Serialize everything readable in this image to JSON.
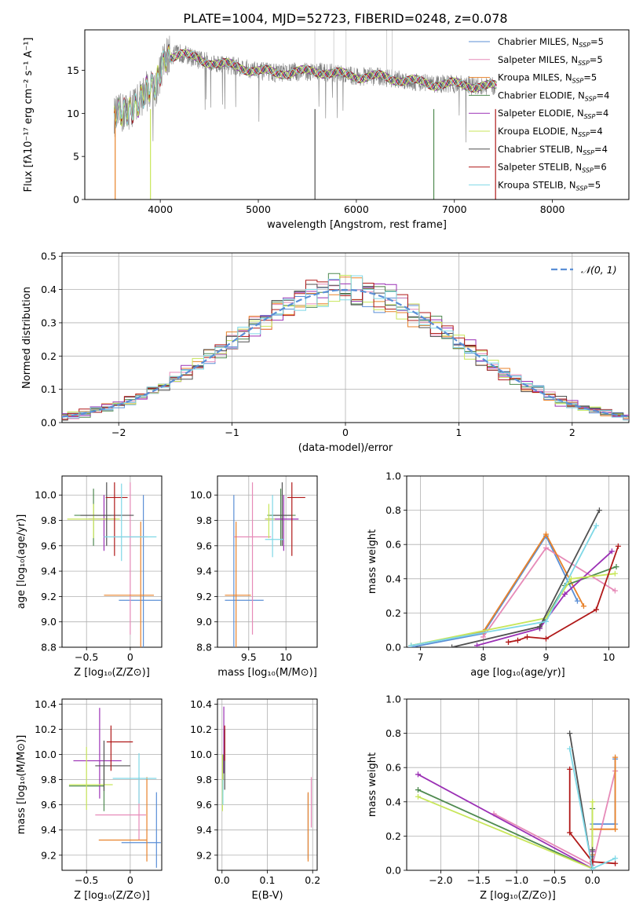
{
  "figure": {
    "title": "PLATE=1004, MJD=52723, FIBERID=0248, z=0.078"
  },
  "series": [
    {
      "name": "Chabrier MILES, N",
      "sub": "SSP",
      "suffix": "=5",
      "color": "#5b8fd6"
    },
    {
      "name": "Salpeter MILES, N",
      "sub": "SSP",
      "suffix": "=5",
      "color": "#e68ab8"
    },
    {
      "name": "Kroupa MILES, N",
      "sub": "SSP",
      "suffix": "=5",
      "color": "#e8822a"
    },
    {
      "name": "Chabrier ELODIE, N",
      "sub": "SSP",
      "suffix": "=4",
      "color": "#4f8a50"
    },
    {
      "name": "Salpeter ELODIE, N",
      "sub": "SSP",
      "suffix": "=4",
      "color": "#9b30b5"
    },
    {
      "name": "Kroupa ELODIE, N",
      "sub": "SSP",
      "suffix": "=4",
      "color": "#c8e65a"
    },
    {
      "name": "Chabrier STELIB, N",
      "sub": "SSP",
      "suffix": "=4",
      "color": "#505050"
    },
    {
      "name": "Salpeter STELIB, N",
      "sub": "SSP",
      "suffix": "=6",
      "color": "#b01818"
    },
    {
      "name": "Kroupa STELIB, N",
      "sub": "SSP",
      "suffix": "=5",
      "color": "#7fd8e6"
    }
  ],
  "chart_data": [
    {
      "id": "spectrum",
      "type": "line",
      "xlabel": "wavelength [Angstrom, rest frame]",
      "ylabel": "Flux [fλ10⁻¹⁷ erg cm⁻² s⁻¹ A⁻¹]",
      "xlim": [
        3230,
        8780
      ],
      "ylim": [
        0,
        19.7
      ],
      "xticks": [
        4000,
        5000,
        6000,
        7000,
        8000
      ],
      "yticks": [
        0,
        5,
        10,
        15
      ],
      "grid": false,
      "legend": "right",
      "data_color": "#808080",
      "spectrum_continuum": [
        [
          3530,
          9.6
        ],
        [
          3650,
          10.2
        ],
        [
          3750,
          11.0
        ],
        [
          3850,
          12.6
        ],
        [
          3950,
          12.9
        ],
        [
          4050,
          16.5
        ],
        [
          4200,
          17.0
        ],
        [
          4400,
          16.2
        ],
        [
          4600,
          15.8
        ],
        [
          4800,
          15.4
        ],
        [
          5000,
          14.9
        ],
        [
          5200,
          14.7
        ],
        [
          5400,
          14.8
        ],
        [
          5600,
          14.9
        ],
        [
          5800,
          14.6
        ],
        [
          6000,
          14.3
        ],
        [
          6200,
          14.3
        ],
        [
          6400,
          14.0
        ],
        [
          6600,
          13.7
        ],
        [
          6800,
          13.4
        ],
        [
          7000,
          13.4
        ],
        [
          7200,
          13.2
        ],
        [
          7400,
          13.1
        ],
        [
          7600,
          13.0
        ],
        [
          7800,
          12.7
        ],
        [
          8000,
          12.6
        ],
        [
          8200,
          12.6
        ],
        [
          8400,
          12.5
        ],
        [
          8600,
          12.3
        ],
        [
          8700,
          12.2
        ]
      ]
    },
    {
      "id": "residuals",
      "type": "histogram",
      "xlabel": "(data-model)/error",
      "ylabel": "Normed distribution",
      "xlim": [
        -2.5,
        2.5
      ],
      "ylim": [
        0,
        0.51
      ],
      "xticks": [
        -2,
        -1,
        0,
        1,
        2
      ],
      "yticks": [
        0.0,
        0.1,
        0.2,
        0.3,
        0.4,
        0.5
      ],
      "grid": true,
      "legend": "top-right",
      "legend_label": "𝒩(0, 1)",
      "normal_color": "#5b8fd6",
      "bin_width": 0.1
    },
    {
      "id": "age-vs-z",
      "type": "errorbar",
      "xlabel": "Z [log₁₀(Z/Z⊙)]",
      "ylabel": "age  [log₁₀(age/yr)]",
      "xlim": [
        -0.78,
        0.36
      ],
      "ylim": [
        8.8,
        10.15
      ],
      "xticks": [
        -0.5,
        0.0
      ],
      "ytick_labels": [
        "8.8",
        "9.0",
        "9.2",
        "9.4",
        "9.6",
        "9.8",
        "10.0"
      ],
      "grid": true,
      "points": [
        [
          0.15,
          9.17,
          0.28,
          0.3,
          0.75,
          0.83
        ],
        [
          0.0,
          9.67,
          0.2,
          0.2,
          0.77,
          0.43
        ],
        [
          0.12,
          9.21,
          0.42,
          0.15,
          0.71,
          0.58
        ],
        [
          -0.42,
          9.84,
          0.22,
          0.2,
          0.24,
          0.21
        ],
        [
          -0.3,
          9.81,
          0.18,
          0.14,
          0.25,
          0.19
        ],
        [
          -0.42,
          9.81,
          0.3,
          0.3,
          0.15,
          0.12
        ],
        [
          -0.27,
          9.84,
          0.3,
          0.31,
          0.24,
          0.26
        ],
        [
          -0.18,
          9.98,
          0.1,
          0.15,
          0.46,
          0.12
        ],
        [
          -0.1,
          9.67,
          0.2,
          0.4,
          0.19,
          0.42
        ]
      ]
    },
    {
      "id": "age-vs-mass",
      "type": "errorbar",
      "xlabel": "mass [log₁₀(M/M⊙)]",
      "ylabel": "",
      "xlim": [
        9.08,
        10.42
      ],
      "ylim": [
        8.8,
        10.15
      ],
      "xticks": [
        9.5,
        10.0
      ],
      "ytick_labels": [
        "8.8",
        "9.0",
        "9.2",
        "9.4",
        "9.6",
        "9.8",
        "10.0"
      ],
      "grid": true,
      "points": [
        [
          9.3,
          9.17,
          0.12,
          0.4,
          0.75,
          0.83
        ],
        [
          9.55,
          9.67,
          0.25,
          0.25,
          0.77,
          0.43
        ],
        [
          9.33,
          9.21,
          0.15,
          0.2,
          0.71,
          0.58
        ],
        [
          9.93,
          9.84,
          0.18,
          0.2,
          0.24,
          0.21
        ],
        [
          9.97,
          9.81,
          0.25,
          0.2,
          0.25,
          0.19
        ],
        [
          9.77,
          9.81,
          0.05,
          0.08,
          0.15,
          0.12
        ],
        [
          9.95,
          9.84,
          0.12,
          0.12,
          0.24,
          0.26
        ],
        [
          10.08,
          9.98,
          0.06,
          0.18,
          0.46,
          0.12
        ],
        [
          9.82,
          9.65,
          0.1,
          0.15,
          0.14,
          0.35
        ]
      ]
    },
    {
      "id": "weight-vs-age",
      "type": "line",
      "xlabel": "age  [log₁₀(age/yr)]",
      "ylabel": "mass weight",
      "xlim": [
        6.78,
        10.32
      ],
      "ylim": [
        0,
        1.0
      ],
      "xticks": [
        7,
        8,
        9,
        10
      ],
      "yticks": [
        0.0,
        0.2,
        0.4,
        0.6,
        0.8,
        1.0
      ],
      "grid": true,
      "lines": [
        [
          [
            6.85,
            0.0
          ],
          [
            8.0,
            0.08
          ],
          [
            9.0,
            0.65
          ],
          [
            9.5,
            0.27
          ]
        ],
        [
          [
            8.0,
            0.06
          ],
          [
            9.0,
            0.58
          ],
          [
            10.1,
            0.33
          ]
        ],
        [
          [
            6.85,
            0.01
          ],
          [
            8.0,
            0.09
          ],
          [
            9.0,
            0.66
          ],
          [
            9.6,
            0.24
          ]
        ],
        [
          [
            8.9,
            0.11
          ],
          [
            9.3,
            0.36
          ],
          [
            10.12,
            0.47
          ]
        ],
        [
          [
            7.9,
            0.01
          ],
          [
            8.9,
            0.11
          ],
          [
            9.3,
            0.31
          ],
          [
            10.05,
            0.56
          ]
        ],
        [
          [
            6.85,
            0.01
          ],
          [
            9.0,
            0.17
          ],
          [
            9.4,
            0.4
          ],
          [
            10.1,
            0.43
          ]
        ],
        [
          [
            7.5,
            0.0
          ],
          [
            8.9,
            0.12
          ],
          [
            9.85,
            0.8
          ]
        ],
        [
          [
            8.4,
            0.03
          ],
          [
            8.55,
            0.04
          ],
          [
            8.7,
            0.06
          ],
          [
            9.0,
            0.05
          ],
          [
            9.8,
            0.22
          ],
          [
            10.15,
            0.59
          ]
        ],
        [
          [
            6.85,
            0.01
          ],
          [
            9.0,
            0.15
          ],
          [
            9.8,
            0.71
          ]
        ]
      ]
    },
    {
      "id": "mass-vs-z",
      "type": "errorbar",
      "xlabel": "Z [log₁₀(Z/Z⊙)]",
      "ylabel": "mass [log₁₀(M/M⊙)]",
      "xlim": [
        -0.78,
        0.36
      ],
      "ylim": [
        9.08,
        10.44
      ],
      "xticks": [
        -0.5,
        0.0
      ],
      "ytick_labels": [
        "9.2",
        "9.4",
        "9.6",
        "9.8",
        "10.0",
        "10.2",
        "10.4"
      ],
      "grid": true,
      "points": [
        [
          0.3,
          9.3,
          0.4,
          0.05,
          0.2,
          0.4
        ],
        [
          0.1,
          9.52,
          0.5,
          0.08,
          0.2,
          0.3
        ],
        [
          0.19,
          9.32,
          0.55,
          0.0,
          0.17,
          0.5
        ],
        [
          -0.3,
          9.75,
          0.4,
          0.0,
          0.2,
          0.15
        ],
        [
          -0.35,
          9.95,
          0.3,
          0.25,
          0.3,
          0.42
        ],
        [
          -0.5,
          9.76,
          0.2,
          0.3,
          0.2,
          0.3
        ],
        [
          -0.3,
          9.91,
          0.1,
          0.3,
          0.2,
          0.2
        ],
        [
          -0.22,
          10.1,
          0.05,
          0.25,
          0.23,
          0.13
        ],
        [
          0.1,
          9.81,
          0.3,
          0.2,
          0.2,
          0.2
        ]
      ]
    },
    {
      "id": "mass-vs-ebv",
      "type": "errorbar",
      "xlabel": "E(B-V)",
      "ylabel": "",
      "xlim": [
        -0.01,
        0.21
      ],
      "ylim": [
        9.08,
        10.44
      ],
      "xticks": [
        0.0,
        0.1,
        0.2
      ],
      "ytick_labels": [
        "9.2",
        "9.4",
        "9.6",
        "9.8",
        "10.0",
        "10.2",
        "10.4"
      ],
      "grid": true,
      "points": [
        [
          0.19,
          9.5,
          0.0,
          0.0,
          0.33,
          0.19
        ],
        [
          0.197,
          9.52,
          0.0,
          0.0,
          0.1,
          0.3
        ],
        [
          0.19,
          9.32,
          0.0,
          0.0,
          0.17,
          0.38
        ],
        [
          0.002,
          9.8,
          0.0,
          0.0,
          0.1,
          0.2
        ],
        [
          0.004,
          10.05,
          0.0,
          0.0,
          0.2,
          0.33
        ],
        [
          0.001,
          9.8,
          0.0,
          0.0,
          0.25,
          0.2
        ],
        [
          0.006,
          10.0,
          0.0,
          0.0,
          0.28,
          0.2
        ],
        [
          0.006,
          10.1,
          0.0,
          0.0,
          0.15,
          0.13
        ],
        [
          0.002,
          9.7,
          0.0,
          0.0,
          0.1,
          0.1
        ]
      ]
    },
    {
      "id": "weight-vs-z",
      "type": "line",
      "xlabel": "Z [log₁₀(Z/Z⊙)]",
      "ylabel": "mass weight",
      "xlim": [
        -2.45,
        0.48
      ],
      "ylim": [
        0,
        1.0
      ],
      "xticks": [
        -2.0,
        -1.5,
        -1.0,
        -0.5,
        0.0
      ],
      "yticks": [
        0.0,
        0.2,
        0.4,
        0.6,
        0.8,
        1.0
      ],
      "grid": true,
      "lines": [
        [
          [
            0.0,
            0.08
          ],
          [
            0.0,
            0.27
          ],
          [
            0.3,
            0.27
          ],
          [
            0.3,
            0.65
          ]
        ],
        [
          [
            -1.3,
            0.33
          ],
          [
            0.0,
            0.03
          ],
          [
            0.3,
            0.58
          ]
        ],
        [
          [
            0.0,
            0.09
          ],
          [
            0.0,
            0.24
          ],
          [
            0.3,
            0.24
          ],
          [
            0.3,
            0.66
          ]
        ],
        [
          [
            -2.3,
            0.47
          ],
          [
            0.0,
            0.01
          ],
          [
            0.0,
            0.36
          ]
        ],
        [
          [
            -2.3,
            0.56
          ],
          [
            0.0,
            0.01
          ],
          [
            0.0,
            0.11
          ]
        ],
        [
          [
            -2.3,
            0.43
          ],
          [
            0.0,
            0.01
          ],
          [
            0.0,
            0.4
          ]
        ],
        [
          [
            -0.3,
            0.8
          ],
          [
            0.0,
            0.0
          ],
          [
            0.0,
            0.12
          ]
        ],
        [
          [
            -0.3,
            0.59
          ],
          [
            -0.3,
            0.22
          ],
          [
            0.0,
            0.05
          ],
          [
            0.3,
            0.04
          ]
        ],
        [
          [
            -0.3,
            0.71
          ],
          [
            0.0,
            0.01
          ],
          [
            0.3,
            0.07
          ]
        ]
      ]
    }
  ]
}
